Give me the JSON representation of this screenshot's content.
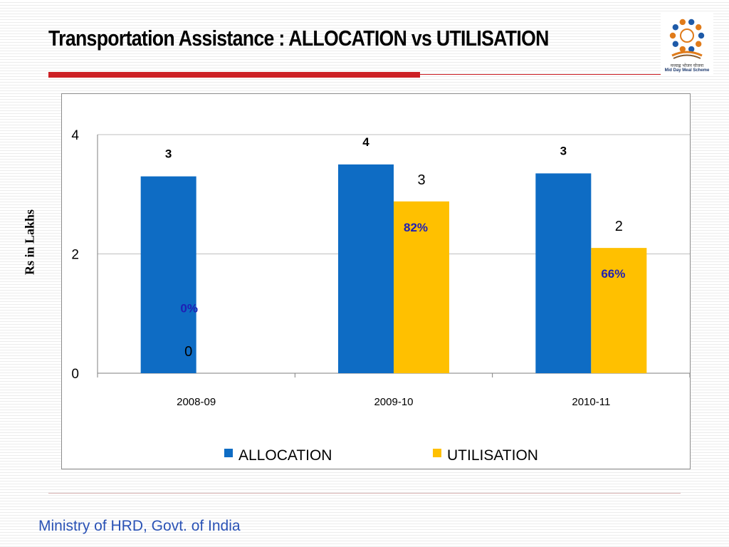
{
  "slide": {
    "title": "Transportation Assistance : ALLOCATION vs UTILISATION",
    "footer": "Ministry of HRD, Govt. of India"
  },
  "logo": {
    "icon": "mid-day-meal-logo",
    "caption_hindi": "मध्याह्न भोजन योजना",
    "caption_english": "Mid Day Meal Scheme"
  },
  "chart_data": {
    "type": "bar",
    "categories": [
      "2008-09",
      "2009-10",
      "2010-11"
    ],
    "ylabel": "Rs in Lakhs",
    "ylim": [
      0,
      4
    ],
    "yticks": [
      0,
      2,
      4
    ],
    "grid": true,
    "legend_position": "bottom",
    "series": [
      {
        "name": "ALLOCATION",
        "color": "#0e6cc4",
        "values": [
          3.3,
          3.5,
          3.35
        ],
        "labels": [
          "3",
          "4",
          "3"
        ]
      },
      {
        "name": "UTILISATION",
        "color": "#ffc000",
        "values": [
          0,
          2.88,
          2.1
        ],
        "labels": [
          "0",
          "3",
          "2"
        ]
      }
    ],
    "annotations": [
      {
        "category": "2008-09",
        "text": "0%",
        "color": "#1f1fb5"
      },
      {
        "category": "2009-10",
        "text": "82%",
        "color": "#1f1fb5"
      },
      {
        "category": "2010-11",
        "text": "66%",
        "color": "#1f1fb5"
      }
    ]
  }
}
